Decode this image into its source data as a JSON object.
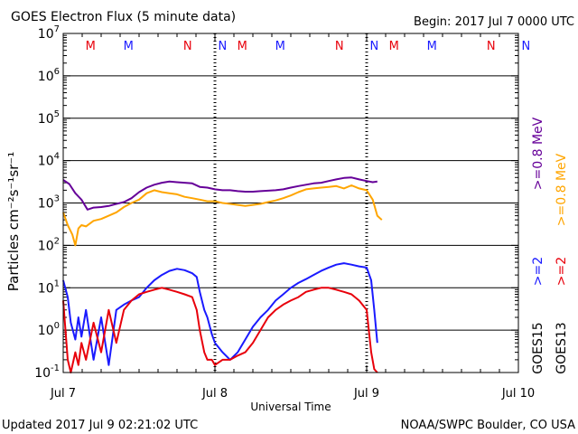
{
  "chart_data": {
    "type": "line",
    "title": "GOES Electron Flux (5 minute data)",
    "begin": "Begin: 2017 Jul 7 0000 UTC",
    "xlabel": "Universal Time",
    "ylabel": "Particles cm⁻²s⁻¹sr⁻¹",
    "y_scale": "log",
    "ylim": [
      0.1,
      10000000
    ],
    "xlim_days": [
      "Jul 7",
      "Jul 10"
    ],
    "x_tick_labels": [
      "Jul 7",
      "Jul 8",
      "Jul 9",
      "Jul 10"
    ],
    "y_tick_exponents": [
      "-1",
      "0",
      "1",
      "2",
      "3",
      "4",
      "5",
      "6",
      "7"
    ],
    "threshold": 1000,
    "markers": [
      {
        "label": "M",
        "day": 0.18,
        "color": "#e8000b"
      },
      {
        "label": "M",
        "day": 0.43,
        "color": "#1a1aff"
      },
      {
        "label": "N",
        "day": 0.82,
        "color": "#e8000b"
      },
      {
        "label": "N",
        "day": 1.05,
        "color": "#1a1aff"
      },
      {
        "label": "M",
        "day": 1.18,
        "color": "#e8000b"
      },
      {
        "label": "M",
        "day": 1.43,
        "color": "#1a1aff"
      },
      {
        "label": "N",
        "day": 1.82,
        "color": "#e8000b"
      },
      {
        "label": "N",
        "day": 2.05,
        "color": "#1a1aff"
      },
      {
        "label": "M",
        "day": 2.18,
        "color": "#e8000b"
      },
      {
        "label": "M",
        "day": 2.43,
        "color": "#1a1aff"
      },
      {
        "label": "N",
        "day": 2.82,
        "color": "#e8000b"
      },
      {
        "label": "N",
        "day": 3.05,
        "color": "#1a1aff"
      }
    ],
    "right_labels": [
      {
        "text": ">=0.8  MeV",
        "color": "#660099"
      },
      {
        "text": ">=0.8  MeV",
        "color": "#ffa500"
      },
      {
        "text": ">=2",
        "color": "#1a1aff"
      },
      {
        "text": ">=2",
        "color": "#e8000b"
      },
      {
        "text": "GOES15",
        "color": "#000000"
      },
      {
        "text": "GOES13",
        "color": "#000000"
      }
    ],
    "series": [
      {
        "name": "GOES15 >=0.8 MeV",
        "color": "#660099",
        "x": [
          0.0,
          0.04,
          0.08,
          0.12,
          0.16,
          0.2,
          0.25,
          0.3,
          0.35,
          0.4,
          0.45,
          0.5,
          0.55,
          0.6,
          0.65,
          0.7,
          0.75,
          0.8,
          0.85,
          0.9,
          0.95,
          1.0,
          1.05,
          1.1,
          1.15,
          1.2,
          1.25,
          1.3,
          1.35,
          1.4,
          1.45,
          1.5,
          1.55,
          1.6,
          1.65,
          1.7,
          1.75,
          1.8,
          1.85,
          1.9,
          1.95,
          2.0,
          2.04,
          2.07
        ],
        "y": [
          3500,
          2800,
          1700,
          1200,
          700,
          780,
          800,
          850,
          950,
          1050,
          1300,
          1800,
          2300,
          2700,
          3000,
          3200,
          3100,
          3000,
          2900,
          2400,
          2300,
          2100,
          2000,
          2000,
          1900,
          1850,
          1850,
          1900,
          1950,
          2000,
          2100,
          2300,
          2500,
          2700,
          2900,
          3000,
          3300,
          3600,
          3900,
          4000,
          3600,
          3300,
          3100,
          3200
        ]
      },
      {
        "name": "GOES13 >=0.8 MeV",
        "color": "#ffa500",
        "x": [
          0.0,
          0.03,
          0.06,
          0.08,
          0.1,
          0.12,
          0.15,
          0.2,
          0.25,
          0.3,
          0.35,
          0.4,
          0.45,
          0.5,
          0.55,
          0.6,
          0.65,
          0.7,
          0.75,
          0.8,
          0.85,
          0.9,
          0.95,
          1.0,
          1.05,
          1.1,
          1.15,
          1.2,
          1.25,
          1.3,
          1.35,
          1.4,
          1.45,
          1.5,
          1.55,
          1.6,
          1.65,
          1.7,
          1.75,
          1.8,
          1.85,
          1.9,
          1.95,
          2.0,
          2.04,
          2.07,
          2.1
        ],
        "y": [
          600,
          300,
          180,
          100,
          250,
          300,
          280,
          380,
          420,
          500,
          600,
          800,
          1000,
          1200,
          1700,
          2000,
          1800,
          1700,
          1600,
          1400,
          1300,
          1200,
          1100,
          1100,
          1000,
          950,
          900,
          850,
          900,
          950,
          1050,
          1150,
          1300,
          1500,
          1800,
          2100,
          2200,
          2300,
          2400,
          2500,
          2200,
          2600,
          2200,
          2000,
          1200,
          500,
          400
        ]
      },
      {
        "name": "GOES15 >=2 MeV",
        "color": "#1a1aff",
        "x": [
          0.0,
          0.03,
          0.05,
          0.08,
          0.1,
          0.12,
          0.15,
          0.2,
          0.25,
          0.3,
          0.35,
          0.4,
          0.45,
          0.5,
          0.55,
          0.6,
          0.65,
          0.7,
          0.75,
          0.8,
          0.85,
          0.88,
          0.9,
          0.93,
          0.95,
          0.98,
          1.0,
          1.05,
          1.1,
          1.15,
          1.2,
          1.25,
          1.3,
          1.35,
          1.4,
          1.45,
          1.5,
          1.55,
          1.6,
          1.65,
          1.7,
          1.75,
          1.8,
          1.85,
          1.9,
          1.95,
          2.0,
          2.03,
          2.05,
          2.07
        ],
        "y": [
          15,
          6,
          1.5,
          0.6,
          2,
          0.7,
          3,
          0.2,
          2,
          0.15,
          3,
          4,
          5,
          6,
          10,
          15,
          20,
          25,
          28,
          26,
          22,
          18,
          8,
          3,
          2,
          0.8,
          0.5,
          0.3,
          0.2,
          0.3,
          0.6,
          1.2,
          2,
          3,
          5,
          7,
          10,
          13,
          16,
          20,
          25,
          30,
          35,
          38,
          35,
          32,
          30,
          15,
          3,
          0.5
        ]
      },
      {
        "name": "GOES13 >=2 MeV",
        "color": "#e8000b",
        "x": [
          0.0,
          0.03,
          0.05,
          0.08,
          0.1,
          0.12,
          0.15,
          0.2,
          0.25,
          0.3,
          0.35,
          0.4,
          0.45,
          0.5,
          0.55,
          0.6,
          0.65,
          0.7,
          0.75,
          0.8,
          0.85,
          0.88,
          0.9,
          0.93,
          0.95,
          0.98,
          1.0,
          1.05,
          1.1,
          1.15,
          1.2,
          1.25,
          1.3,
          1.35,
          1.4,
          1.45,
          1.5,
          1.55,
          1.6,
          1.65,
          1.7,
          1.75,
          1.8,
          1.85,
          1.9,
          1.95,
          2.0,
          2.03,
          2.05,
          2.07
        ],
        "y": [
          5,
          0.2,
          0.1,
          0.3,
          0.15,
          0.5,
          0.2,
          1.5,
          0.3,
          3,
          0.5,
          3,
          5,
          7,
          8,
          9,
          10,
          9,
          8,
          7,
          6,
          3,
          1,
          0.3,
          0.2,
          0.2,
          0.15,
          0.2,
          0.2,
          0.25,
          0.3,
          0.5,
          1,
          2,
          3,
          4,
          5,
          6,
          8,
          9,
          10,
          10,
          9,
          8,
          7,
          5,
          3,
          0.3,
          0.12,
          0.1
        ]
      }
    ]
  },
  "footer": {
    "updated": "Updated 2017 Jul  9 02:21:02 UTC",
    "credit": "NOAA/SWPC Boulder, CO USA"
  }
}
